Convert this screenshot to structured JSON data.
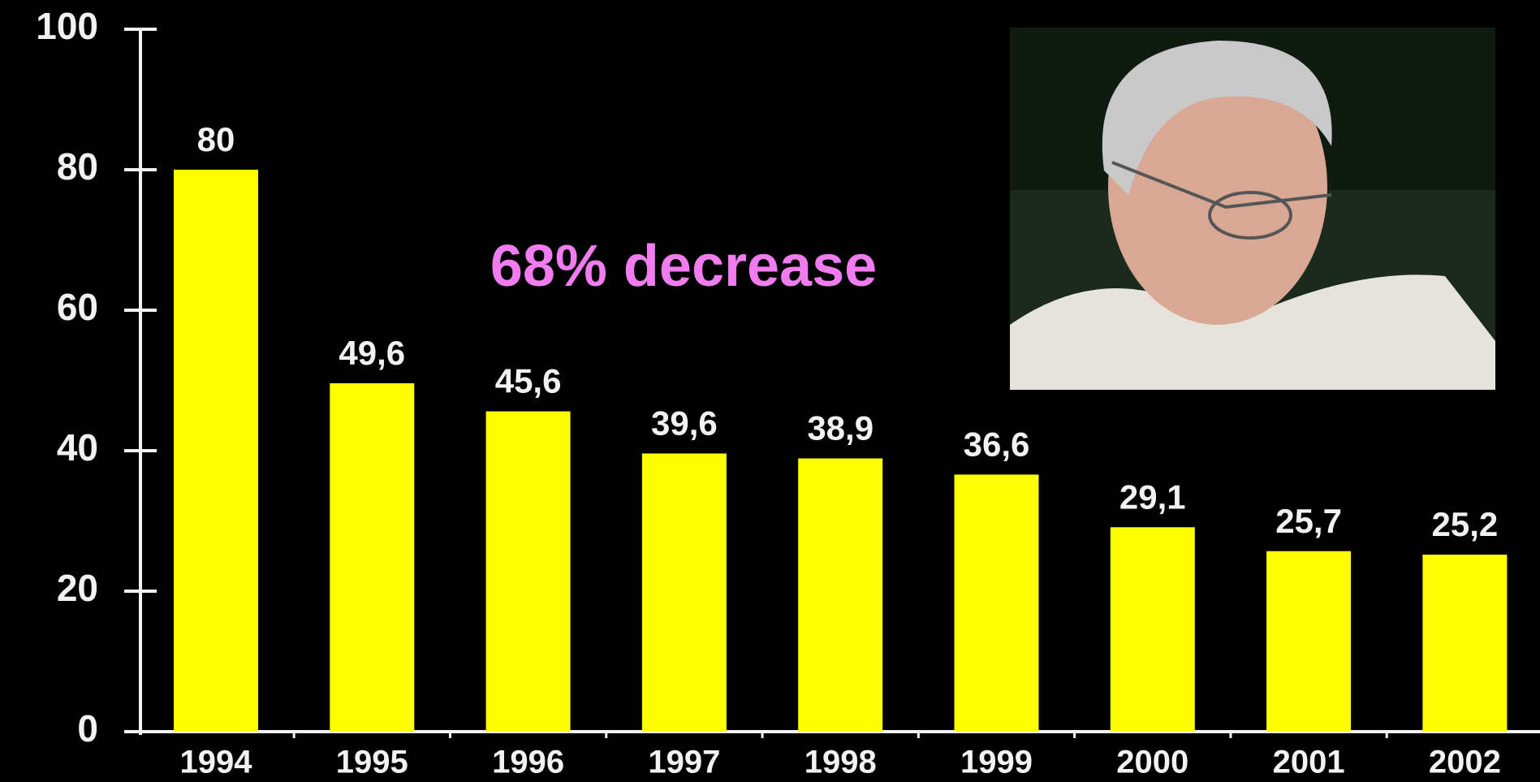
{
  "chart_data": {
    "type": "bar",
    "annotation": "68% decrease",
    "categories": [
      "1994",
      "1995",
      "1996",
      "1997",
      "1998",
      "1999",
      "2000",
      "2001",
      "2002"
    ],
    "values": [
      80,
      49.6,
      45.6,
      39.6,
      38.9,
      36.6,
      29.1,
      25.7,
      25.2
    ],
    "value_labels": [
      "80",
      "49,6",
      "45,6",
      "39,6",
      "38,9",
      "36,6",
      "29,1",
      "25,7",
      "25,2"
    ],
    "color": "#ffff00",
    "ylim": [
      0,
      100
    ],
    "yticks": [
      0,
      20,
      40,
      60,
      80,
      100
    ]
  }
}
